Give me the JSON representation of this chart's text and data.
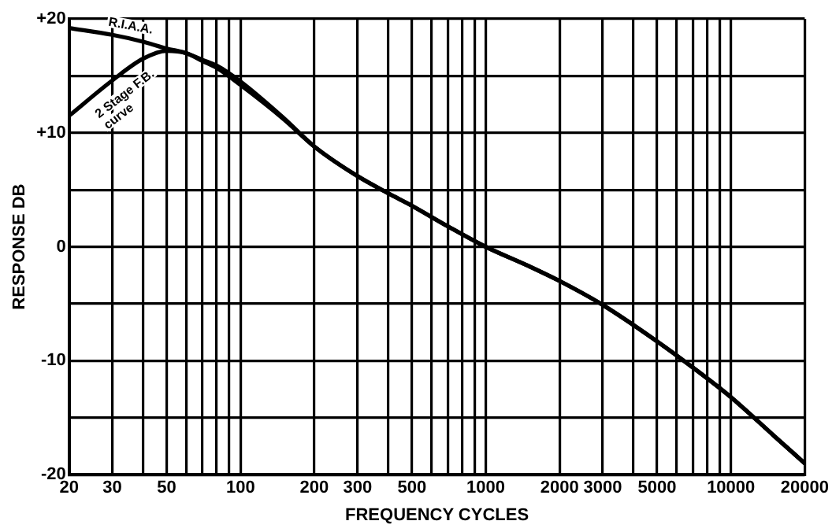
{
  "chart_data": {
    "type": "line",
    "xlabel": "FREQUENCY CYCLES",
    "ylabel": "RESPONSE DB",
    "log": "x",
    "grid": true,
    "legend": false,
    "marker": "none",
    "line_style": "solid",
    "xlim": [
      20,
      20000
    ],
    "ylim": [
      -20,
      20
    ],
    "xticks": [
      20,
      30,
      {
        "value": 40,
        "label": null
      },
      50,
      {
        "value": 60,
        "label": null
      },
      {
        "value": 70,
        "label": null
      },
      {
        "value": 80,
        "label": null
      },
      {
        "value": 90,
        "label": null
      },
      100,
      200,
      300,
      {
        "value": 400,
        "label": null
      },
      500,
      {
        "value": 600,
        "label": null
      },
      {
        "value": 700,
        "label": null
      },
      {
        "value": 800,
        "label": null
      },
      {
        "value": 900,
        "label": null
      },
      1000,
      2000,
      3000,
      {
        "value": 4000,
        "label": null
      },
      5000,
      {
        "value": 6000,
        "label": null
      },
      {
        "value": 7000,
        "label": null
      },
      {
        "value": 8000,
        "label": null
      },
      {
        "value": 9000,
        "label": null
      },
      10000,
      20000
    ],
    "yticks": [
      {
        "value": -20,
        "label": "-20"
      },
      {
        "value": -15,
        "label": null
      },
      {
        "value": -10,
        "label": "-10"
      },
      {
        "value": -5,
        "label": null
      },
      0,
      {
        "value": 5,
        "label": null
      },
      {
        "value": 10,
        "label": "+10"
      },
      {
        "value": 15,
        "label": null
      },
      {
        "value": 20,
        "label": "+20"
      }
    ],
    "series": [
      {
        "name": "R.I.A.A.",
        "color": "#000000",
        "x": [
          20,
          30,
          40,
          50,
          60,
          70,
          80,
          100,
          150,
          200,
          300,
          400,
          500,
          700,
          1000,
          1500,
          2000,
          3000,
          5000,
          7000,
          10000,
          15000,
          20000
        ],
        "values": [
          19.2,
          18.6,
          18.0,
          17.4,
          17.0,
          16.4,
          15.9,
          14.5,
          11.3,
          8.8,
          6.2,
          4.7,
          3.6,
          1.8,
          0,
          -1.7,
          -3.0,
          -5.1,
          -8.3,
          -10.6,
          -13.2,
          -16.6,
          -19.0
        ]
      },
      {
        "name": "2 Stage F.B. curve",
        "color": "#000000",
        "x": [
          20,
          30,
          40,
          50,
          60,
          70,
          80,
          100,
          150,
          200,
          300,
          400,
          500,
          700,
          1000,
          1500,
          2000,
          3000,
          5000,
          7000,
          10000,
          15000,
          20000
        ],
        "values": [
          11.5,
          14.6,
          16.5,
          17.2,
          17.0,
          16.3,
          15.7,
          14.2,
          11.2,
          8.8,
          6.2,
          4.7,
          3.6,
          1.8,
          0,
          -1.7,
          -3.0,
          -5.1,
          -8.3,
          -10.6,
          -13.2,
          -16.6,
          -19.0
        ]
      }
    ]
  }
}
